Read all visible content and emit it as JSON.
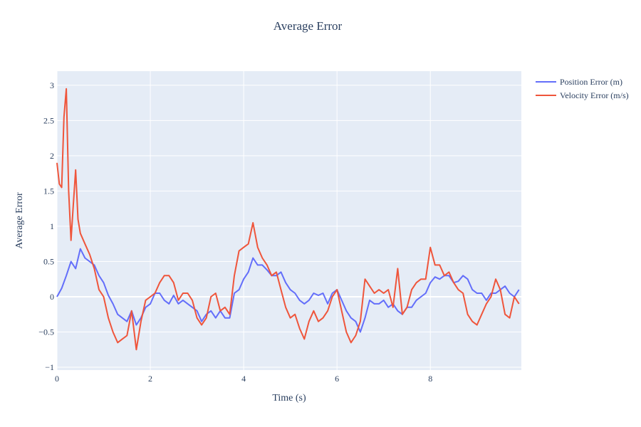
{
  "chart_data": {
    "type": "line",
    "title": "Average Error",
    "xlabel": "Time (s)",
    "ylabel": "Average Error",
    "xlim": [
      0,
      9.95
    ],
    "ylim": [
      -1.04,
      3.2
    ],
    "x_ticks": [
      0,
      2,
      4,
      6,
      8
    ],
    "x_tick_labels": [
      "0",
      "2",
      "4",
      "6",
      "8"
    ],
    "y_ticks": [
      -1,
      -0.5,
      0,
      0.5,
      1,
      1.5,
      2,
      2.5,
      3
    ],
    "y_tick_labels": [
      "−1",
      "−0.5",
      "0",
      "0.5",
      "1",
      "1.5",
      "2",
      "2.5",
      "3"
    ],
    "grid": true,
    "legend_position": "top-right",
    "colors": {
      "plot_background": "#e5ecf6",
      "grid": "#ffffff",
      "position": "#636efa",
      "velocity": "#ef553b",
      "text": "#2a3f5f"
    },
    "series": [
      {
        "name": "Position Error (m)",
        "color": "#636efa",
        "x": [
          0,
          0.1,
          0.2,
          0.3,
          0.4,
          0.5,
          0.6,
          0.7,
          0.8,
          0.9,
          1.0,
          1.1,
          1.2,
          1.3,
          1.4,
          1.5,
          1.6,
          1.7,
          1.8,
          1.9,
          2.0,
          2.1,
          2.2,
          2.3,
          2.4,
          2.5,
          2.6,
          2.7,
          2.8,
          2.9,
          3.0,
          3.1,
          3.2,
          3.3,
          3.4,
          3.5,
          3.6,
          3.7,
          3.8,
          3.9,
          4.0,
          4.1,
          4.2,
          4.3,
          4.4,
          4.5,
          4.6,
          4.7,
          4.8,
          4.9,
          5.0,
          5.1,
          5.2,
          5.3,
          5.4,
          5.5,
          5.6,
          5.7,
          5.8,
          5.9,
          6.0,
          6.1,
          6.2,
          6.3,
          6.4,
          6.5,
          6.6,
          6.7,
          6.8,
          6.9,
          7.0,
          7.1,
          7.2,
          7.3,
          7.4,
          7.5,
          7.6,
          7.7,
          7.8,
          7.9,
          8.0,
          8.1,
          8.2,
          8.3,
          8.4,
          8.5,
          8.6,
          8.7,
          8.8,
          8.9,
          9.0,
          9.1,
          9.2,
          9.3,
          9.4,
          9.5,
          9.6,
          9.7,
          9.8,
          9.9
        ],
        "y": [
          0,
          0.12,
          0.3,
          0.5,
          0.4,
          0.68,
          0.55,
          0.5,
          0.45,
          0.3,
          0.2,
          0.02,
          -0.1,
          -0.25,
          -0.3,
          -0.35,
          -0.2,
          -0.4,
          -0.3,
          -0.15,
          -0.1,
          0.05,
          0.05,
          -0.05,
          -0.1,
          0.02,
          -0.1,
          -0.05,
          -0.1,
          -0.15,
          -0.2,
          -0.35,
          -0.25,
          -0.2,
          -0.3,
          -0.2,
          -0.3,
          -0.3,
          0.05,
          0.1,
          0.25,
          0.35,
          0.55,
          0.45,
          0.45,
          0.38,
          0.3,
          0.3,
          0.35,
          0.2,
          0.1,
          0.05,
          -0.05,
          -0.1,
          -0.05,
          0.05,
          0.02,
          0.05,
          -0.1,
          0.05,
          0.1,
          -0.05,
          -0.2,
          -0.3,
          -0.35,
          -0.5,
          -0.3,
          -0.05,
          -0.1,
          -0.1,
          -0.05,
          -0.15,
          -0.1,
          -0.2,
          -0.25,
          -0.15,
          -0.15,
          -0.05,
          0,
          0.05,
          0.2,
          0.28,
          0.25,
          0.3,
          0.3,
          0.2,
          0.22,
          0.3,
          0.25,
          0.1,
          0.05,
          0.05,
          -0.05,
          0.05,
          0.05,
          0.1,
          0.15,
          0.05,
          0,
          0.1
        ]
      },
      {
        "name": "Velocity Error (m/s)",
        "color": "#ef553b",
        "x": [
          0,
          0.05,
          0.1,
          0.15,
          0.2,
          0.25,
          0.3,
          0.35,
          0.4,
          0.45,
          0.5,
          0.6,
          0.7,
          0.8,
          0.9,
          1.0,
          1.1,
          1.2,
          1.3,
          1.4,
          1.5,
          1.6,
          1.7,
          1.8,
          1.9,
          2.0,
          2.1,
          2.2,
          2.3,
          2.4,
          2.5,
          2.6,
          2.7,
          2.8,
          2.9,
          3.0,
          3.1,
          3.2,
          3.3,
          3.4,
          3.5,
          3.6,
          3.7,
          3.8,
          3.9,
          4.0,
          4.1,
          4.2,
          4.3,
          4.4,
          4.5,
          4.6,
          4.7,
          4.8,
          4.9,
          5.0,
          5.1,
          5.2,
          5.3,
          5.4,
          5.5,
          5.6,
          5.7,
          5.8,
          5.9,
          6.0,
          6.1,
          6.2,
          6.3,
          6.4,
          6.5,
          6.6,
          6.7,
          6.8,
          6.9,
          7.0,
          7.1,
          7.2,
          7.3,
          7.4,
          7.5,
          7.6,
          7.7,
          7.8,
          7.9,
          8.0,
          8.1,
          8.2,
          8.3,
          8.4,
          8.5,
          8.6,
          8.7,
          8.8,
          8.9,
          9.0,
          9.1,
          9.2,
          9.3,
          9.4,
          9.5,
          9.6,
          9.7,
          9.8,
          9.9
        ],
        "y": [
          1.9,
          1.6,
          1.55,
          2.55,
          2.95,
          1.5,
          0.8,
          1.3,
          1.8,
          1.1,
          0.9,
          0.75,
          0.6,
          0.4,
          0.1,
          0,
          -0.3,
          -0.5,
          -0.65,
          -0.6,
          -0.55,
          -0.2,
          -0.75,
          -0.35,
          -0.05,
          0,
          0.05,
          0.2,
          0.3,
          0.3,
          0.2,
          -0.05,
          0.05,
          0.05,
          -0.05,
          -0.3,
          -0.4,
          -0.3,
          0,
          0.05,
          -0.2,
          -0.15,
          -0.25,
          0.3,
          0.65,
          0.7,
          0.75,
          1.05,
          0.7,
          0.55,
          0.45,
          0.3,
          0.35,
          0.1,
          -0.15,
          -0.3,
          -0.25,
          -0.45,
          -0.6,
          -0.35,
          -0.2,
          -0.35,
          -0.3,
          -0.2,
          0,
          0.1,
          -0.2,
          -0.5,
          -0.65,
          -0.55,
          -0.35,
          0.25,
          0.15,
          0.05,
          0.1,
          0.05,
          0.1,
          -0.15,
          0.4,
          -0.25,
          -0.15,
          0.1,
          0.2,
          0.25,
          0.25,
          0.7,
          0.45,
          0.45,
          0.3,
          0.35,
          0.2,
          0.1,
          0.05,
          -0.25,
          -0.35,
          -0.4,
          -0.25,
          -0.1,
          0,
          0.25,
          0.1,
          -0.25,
          -0.3,
          0,
          -0.1
        ]
      }
    ]
  }
}
